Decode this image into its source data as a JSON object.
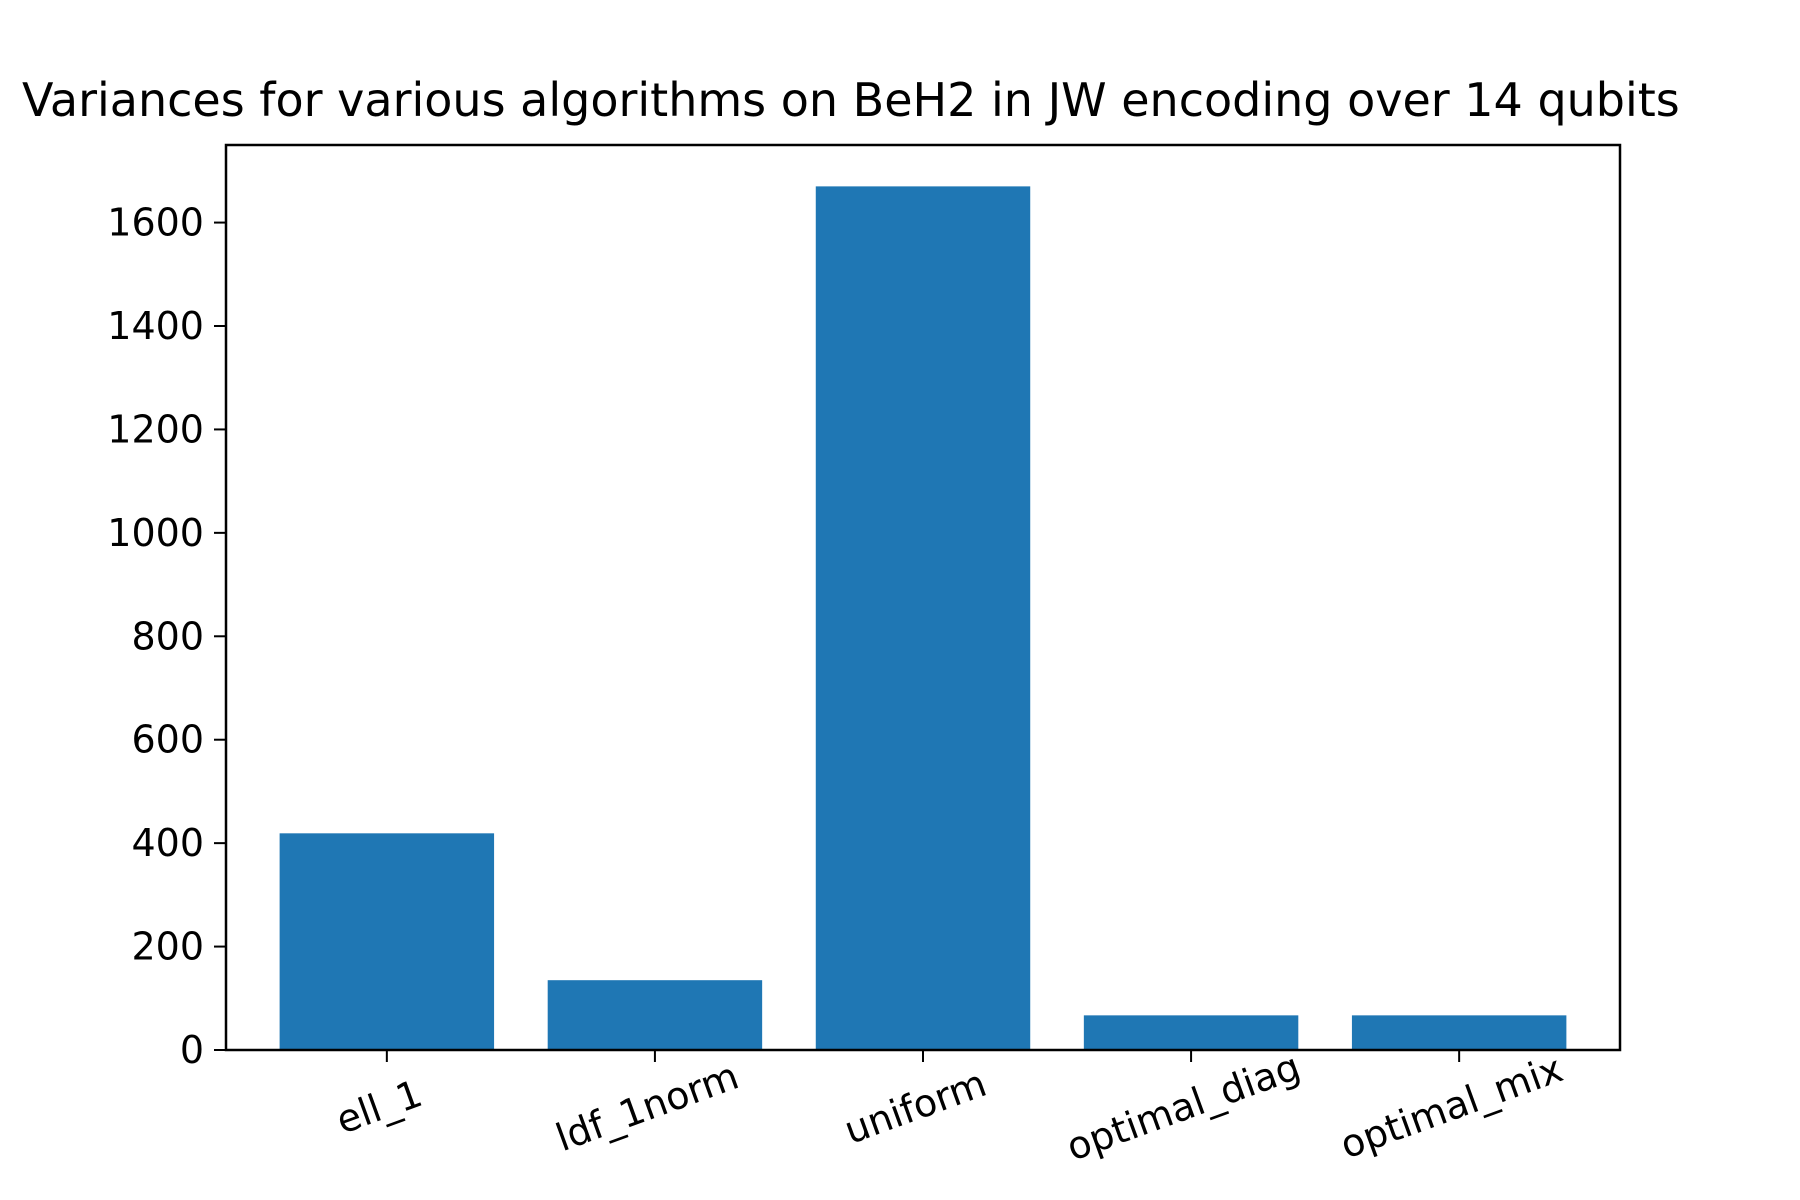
{
  "chart_data": {
    "type": "bar",
    "title": "Variances for various algorithms on BeH2 in JW encoding over 14 qubits",
    "xlabel": "",
    "ylabel": "",
    "categories": [
      "ell_1",
      "ldf_1norm",
      "uniform",
      "optimal_diag",
      "optimal_mix"
    ],
    "values": [
      419,
      135,
      1670,
      67,
      67
    ],
    "ylim": [
      0,
      1750
    ],
    "yticks": [
      0,
      200,
      400,
      600,
      800,
      1000,
      1200,
      1400,
      1600
    ],
    "bar_color": "#1f77b4",
    "grid": false,
    "legend": "none"
  }
}
